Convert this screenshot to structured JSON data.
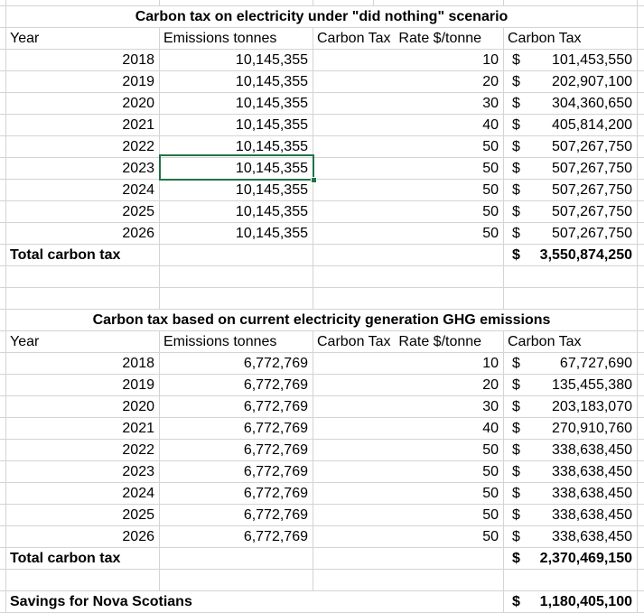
{
  "colors": {
    "background": "#ffffff",
    "gridline": "#d4d4d4",
    "selection_border": "#217346",
    "text": "#000000"
  },
  "tables": [
    {
      "title": "Carbon tax on electricity under \"did nothing\" scenario",
      "headers": {
        "year": "Year",
        "emissions": "Emissions tonnes",
        "rate": "Carbon Tax  Rate $/tonne",
        "tax": "Carbon Tax"
      },
      "rows": [
        {
          "year": "2018",
          "emissions": "10,145,355",
          "rate": "10",
          "currency": "$",
          "tax": "101,453,550"
        },
        {
          "year": "2019",
          "emissions": "10,145,355",
          "rate": "20",
          "currency": "$",
          "tax": "202,907,100"
        },
        {
          "year": "2020",
          "emissions": "10,145,355",
          "rate": "30",
          "currency": "$",
          "tax": "304,360,650"
        },
        {
          "year": "2021",
          "emissions": "10,145,355",
          "rate": "40",
          "currency": "$",
          "tax": "405,814,200"
        },
        {
          "year": "2022",
          "emissions": "10,145,355",
          "rate": "50",
          "currency": "$",
          "tax": "507,267,750"
        },
        {
          "year": "2023",
          "emissions": "10,145,355",
          "rate": "50",
          "currency": "$",
          "tax": "507,267,750"
        },
        {
          "year": "2024",
          "emissions": "10,145,355",
          "rate": "50",
          "currency": "$",
          "tax": "507,267,750"
        },
        {
          "year": "2025",
          "emissions": "10,145,355",
          "rate": "50",
          "currency": "$",
          "tax": "507,267,750"
        },
        {
          "year": "2026",
          "emissions": "10,145,355",
          "rate": "50",
          "currency": "$",
          "tax": "507,267,750"
        }
      ],
      "total": {
        "label": "Total carbon tax",
        "currency": "$",
        "value": "3,550,874,250"
      }
    },
    {
      "title": "Carbon tax based on current electricity generation GHG emissions",
      "headers": {
        "year": "Year",
        "emissions": "Emissions tonnes",
        "rate": "Carbon Tax  Rate $/tonne",
        "tax": "Carbon Tax"
      },
      "rows": [
        {
          "year": "2018",
          "emissions": "6,772,769",
          "rate": "10",
          "currency": "$",
          "tax": "67,727,690"
        },
        {
          "year": "2019",
          "emissions": "6,772,769",
          "rate": "20",
          "currency": "$",
          "tax": "135,455,380"
        },
        {
          "year": "2020",
          "emissions": "6,772,769",
          "rate": "30",
          "currency": "$",
          "tax": "203,183,070"
        },
        {
          "year": "2021",
          "emissions": "6,772,769",
          "rate": "40",
          "currency": "$",
          "tax": "270,910,760"
        },
        {
          "year": "2022",
          "emissions": "6,772,769",
          "rate": "50",
          "currency": "$",
          "tax": "338,638,450"
        },
        {
          "year": "2023",
          "emissions": "6,772,769",
          "rate": "50",
          "currency": "$",
          "tax": "338,638,450"
        },
        {
          "year": "2024",
          "emissions": "6,772,769",
          "rate": "50",
          "currency": "$",
          "tax": "338,638,450"
        },
        {
          "year": "2025",
          "emissions": "6,772,769",
          "rate": "50",
          "currency": "$",
          "tax": "338,638,450"
        },
        {
          "year": "2026",
          "emissions": "6,772,769",
          "rate": "50",
          "currency": "$",
          "tax": "338,638,450"
        }
      ],
      "total": {
        "label": "Total carbon tax",
        "currency": "$",
        "value": "2,370,469,150"
      }
    }
  ],
  "savings": {
    "label": "Savings for Nova Scotians",
    "currency": "$",
    "value": "1,180,405,100"
  },
  "selection": {
    "table_index": 0,
    "row_year": "2023",
    "column": "Emissions tonnes",
    "value": "10,145,355"
  }
}
